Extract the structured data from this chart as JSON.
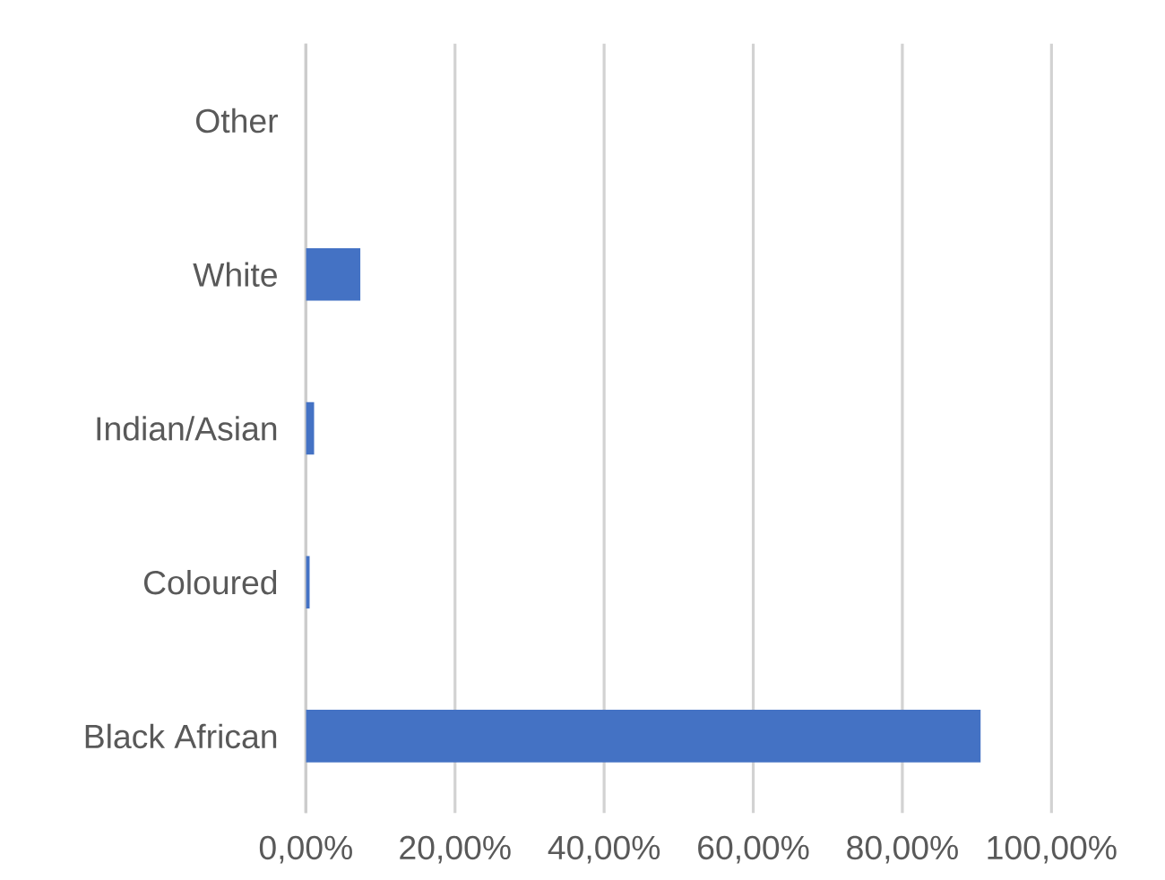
{
  "chart_data": {
    "type": "bar",
    "orientation": "horizontal",
    "categories": [
      "Other",
      "White",
      "Indian/Asian",
      "Coloured",
      "Black African"
    ],
    "values": [
      0,
      7.3,
      1.1,
      0.5,
      90.5
    ],
    "color": "#4472c4",
    "xlim": [
      0,
      100
    ],
    "xticks": [
      {
        "value": 0,
        "label": "0,00%"
      },
      {
        "value": 20,
        "label": "20,00%"
      },
      {
        "value": 40,
        "label": "40,00%"
      },
      {
        "value": 60,
        "label": "60,00%"
      },
      {
        "value": 80,
        "label": "80,00%"
      },
      {
        "value": 100,
        "label": "100,00%"
      }
    ],
    "grid": "x"
  }
}
